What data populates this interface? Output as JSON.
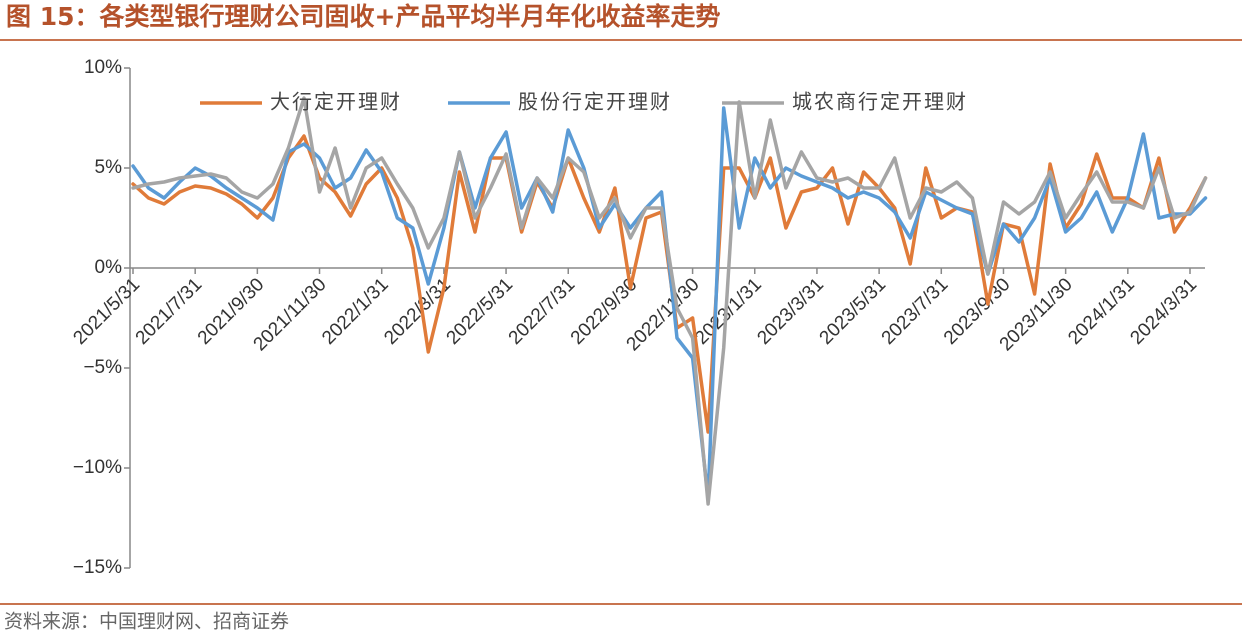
{
  "chart_data": {
    "type": "line",
    "title": "图 15：各类型银行理财公司固收+产品平均半月年化收益率走势",
    "source": "资料来源：中国理财网、招商证券",
    "categories": [
      "2021/5/31",
      null,
      null,
      null,
      "2021/7/31",
      null,
      null,
      null,
      "2021/9/30",
      null,
      null,
      null,
      "2021/11/30",
      null,
      null,
      null,
      "2022/1/31",
      null,
      null,
      null,
      "2022/3/31",
      null,
      null,
      null,
      "2022/5/31",
      null,
      null,
      null,
      "2022/7/31",
      null,
      null,
      null,
      "2022/9/30",
      null,
      null,
      null,
      "2022/11/30",
      null,
      null,
      null,
      "2023/1/31",
      null,
      null,
      null,
      "2023/3/31",
      null,
      null,
      null,
      "2023/5/31",
      null,
      null,
      null,
      "2023/7/31",
      null,
      null,
      null,
      "2023/9/30",
      null,
      null,
      null,
      "2023/11/30",
      null,
      null,
      null,
      "2024/1/31",
      null,
      null,
      null,
      "2024/3/31",
      null
    ],
    "series": [
      {
        "name": "大行定开理财",
        "color": "#e07b39",
        "values": [
          4.2,
          3.5,
          3.2,
          3.8,
          4.1,
          4.0,
          3.7,
          3.2,
          2.5,
          3.5,
          5.5,
          6.6,
          4.5,
          3.8,
          2.6,
          4.2,
          5.0,
          3.5,
          1.0,
          -4.2,
          -1.0,
          4.8,
          1.8,
          5.5,
          5.5,
          1.8,
          4.3,
          3.0,
          5.5,
          3.5,
          1.8,
          4.0,
          -1.0,
          2.5,
          2.8,
          -3.0,
          -2.5,
          -8.2,
          5.0,
          5.0,
          3.5,
          5.5,
          2.0,
          3.8,
          4.0,
          5.0,
          2.2,
          4.8,
          4.0,
          3.0,
          0.2,
          5.0,
          2.5,
          3.0,
          2.8,
          -1.8,
          2.2,
          2.0,
          -1.3,
          5.2,
          2.0,
          3.2,
          5.7,
          3.5,
          3.5,
          3.0,
          5.5,
          1.8,
          3.0,
          4.5
        ]
      },
      {
        "name": "股份行定开理财",
        "color": "#5b9bd5",
        "values": [
          5.1,
          4.0,
          3.5,
          4.3,
          5.0,
          4.6,
          4.0,
          3.5,
          3.0,
          2.4,
          5.8,
          6.2,
          5.5,
          4.0,
          4.5,
          5.9,
          4.8,
          2.5,
          2.0,
          -0.8,
          2.0,
          5.8,
          3.0,
          5.5,
          6.8,
          3.0,
          4.5,
          2.8,
          6.9,
          5.0,
          2.0,
          3.2,
          2.0,
          3.0,
          3.8,
          -3.5,
          -4.5,
          -11.5,
          8.0,
          2.0,
          5.5,
          4.0,
          5.0,
          4.6,
          4.3,
          4.0,
          3.5,
          3.8,
          3.5,
          2.8,
          1.5,
          3.8,
          3.4,
          3.0,
          2.7,
          -0.3,
          2.2,
          1.3,
          2.5,
          4.5,
          1.8,
          2.5,
          3.8,
          1.8,
          3.5,
          6.7,
          2.5,
          2.7,
          2.7,
          3.5
        ]
      },
      {
        "name": "城农商行定开理财",
        "color": "#a5a5a5",
        "values": [
          4.0,
          4.2,
          4.3,
          4.5,
          4.6,
          4.7,
          4.5,
          3.8,
          3.5,
          4.2,
          6.0,
          8.5,
          3.8,
          6.0,
          3.0,
          5.0,
          5.5,
          4.2,
          3.0,
          1.0,
          2.5,
          5.8,
          2.5,
          4.0,
          5.7,
          2.0,
          4.5,
          3.5,
          5.5,
          4.8,
          2.5,
          3.5,
          1.5,
          3.0,
          3.0,
          -2.0,
          -3.5,
          -11.8,
          -4.0,
          8.3,
          3.5,
          7.4,
          4.0,
          5.8,
          4.5,
          4.3,
          4.5,
          4.0,
          4.0,
          5.5,
          2.5,
          4.0,
          3.8,
          4.3,
          3.5,
          -0.3,
          3.3,
          2.7,
          3.3,
          4.8,
          2.5,
          3.7,
          4.8,
          3.3,
          3.3,
          3.0,
          5.0,
          2.5,
          2.8,
          4.5
        ]
      }
    ],
    "ylim": [
      -15,
      10
    ],
    "yticks": [
      {
        "value": -15,
        "label": "−15%"
      },
      {
        "value": -10,
        "label": "−10%"
      },
      {
        "value": -5,
        "label": "−5%"
      },
      {
        "value": 0,
        "label": "0%"
      },
      {
        "value": 5,
        "label": "5%"
      },
      {
        "value": 10,
        "label": "10%"
      }
    ],
    "grid": false
  }
}
